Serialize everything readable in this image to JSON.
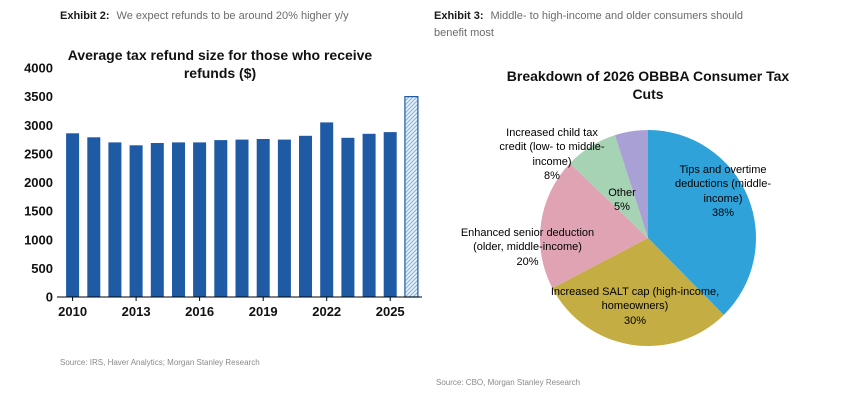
{
  "left": {
    "exhibit_label": "Exhibit 2:",
    "exhibit_text": "We expect refunds to be around 20% higher y/y",
    "source": "Source: IRS, Haver Analytics; Morgan Stanley Research"
  },
  "right": {
    "exhibit_label": "Exhibit 3:",
    "exhibit_text": "Middle- to high-income and older consumers should benefit most",
    "source": "Source: CBO, Morgan Stanley Research"
  },
  "chart_data": [
    {
      "type": "bar",
      "title": "Average tax refund size for those who receive refunds ($)",
      "xlabel": "",
      "ylabel": "",
      "ylim": [
        0,
        4000
      ],
      "ytick_step": 500,
      "categories": [
        "2010",
        "2011",
        "2012",
        "2013",
        "2014",
        "2015",
        "2016",
        "2017",
        "2018",
        "2019",
        "2020",
        "2021",
        "2022",
        "2023",
        "2024",
        "2025",
        "2026"
      ],
      "values": [
        2860,
        2790,
        2700,
        2650,
        2690,
        2700,
        2700,
        2740,
        2750,
        2760,
        2750,
        2815,
        3050,
        2780,
        2850,
        2880,
        3500
      ],
      "xticks": [
        "2010",
        "2013",
        "2016",
        "2019",
        "2022",
        "2025"
      ],
      "last_bar_forecast": true,
      "bar_color": "#1f5aa5",
      "forecast_fill": "#e8f0fa",
      "forecast_hatch": "#7fb2e5",
      "grid": "off",
      "legend": "none"
    },
    {
      "type": "pie",
      "title": "Breakdown of 2026 OBBBA Consumer Tax Cuts",
      "slices": [
        {
          "label": "Tips and overtime deductions (middle-income)",
          "pct": 38,
          "color": "#2fa3d9"
        },
        {
          "label": "Increased SALT cap (high-income, homeowners)",
          "pct": 30,
          "color": "#c4ad43"
        },
        {
          "label": "Enhanced senior deduction (older, middle-income)",
          "pct": 20,
          "color": "#dfa3b4"
        },
        {
          "label": "Increased child tax credit (low- to middle-income)",
          "pct": 8,
          "color": "#a6d3b3"
        },
        {
          "label": "Other",
          "pct": 5,
          "color": "#a9a1d5"
        }
      ],
      "start_angle_deg": -90,
      "direction": "clockwise",
      "legend": "none"
    }
  ]
}
